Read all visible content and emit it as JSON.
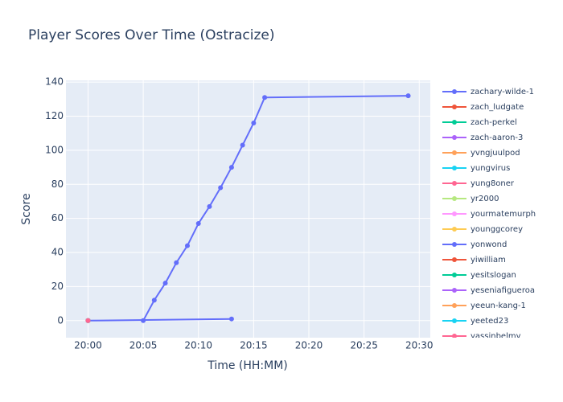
{
  "chart_data": {
    "type": "line",
    "title": "Player Scores Over Time (Ostracize)",
    "x_label": "Time (HH:MM)",
    "y_label": "Score",
    "xlim": [
      "19:58",
      "20:31"
    ],
    "xticks": [
      "20:00",
      "20:05",
      "20:10",
      "20:15",
      "20:20",
      "20:25",
      "20:30"
    ],
    "ylim": [
      -10,
      141
    ],
    "yticks": [
      0,
      20,
      40,
      60,
      80,
      100,
      120,
      140
    ],
    "grid": true,
    "legend": "right",
    "series": [
      {
        "name": "zachary-wilde-1",
        "color": "#636efa",
        "x": [
          "20:05",
          "20:06",
          "20:07",
          "20:08",
          "20:09",
          "20:10",
          "20:11",
          "20:12",
          "20:13",
          "20:14",
          "20:15",
          "20:16",
          "20:29"
        ],
        "values": [
          0,
          12,
          22,
          34,
          44,
          57,
          67,
          78,
          90,
          103,
          116,
          131,
          132
        ]
      },
      {
        "name": "zach_ludgate",
        "color": "#EF553B",
        "x": [
          "20:00"
        ],
        "values": [
          0
        ]
      },
      {
        "name": "zach-perkel",
        "color": "#00cc96",
        "x": [
          "20:00"
        ],
        "values": [
          0
        ]
      },
      {
        "name": "zach-aaron-3",
        "color": "#ab63fa",
        "x": [
          "20:00"
        ],
        "values": [
          0
        ]
      },
      {
        "name": "yvngjuulpod",
        "color": "#FFA15A",
        "x": [
          "20:00"
        ],
        "values": [
          0
        ]
      },
      {
        "name": "yungvirus",
        "color": "#19d3f3",
        "x": [
          "20:00"
        ],
        "values": [
          0
        ]
      },
      {
        "name": "yung8oner",
        "color": "#FF6692",
        "x": [
          "20:00"
        ],
        "values": [
          0
        ]
      },
      {
        "name": "yr2000",
        "color": "#B6E880",
        "x": [
          "20:00"
        ],
        "values": [
          0
        ]
      },
      {
        "name": "yourmatemurph",
        "color": "#FF97FF",
        "x": [
          "20:00"
        ],
        "values": [
          0
        ]
      },
      {
        "name": "younggcorey",
        "color": "#FECB52",
        "x": [
          "20:00"
        ],
        "values": [
          0
        ]
      },
      {
        "name": "yonwond",
        "color": "#636efa",
        "x": [
          "20:00",
          "20:13"
        ],
        "values": [
          0,
          1
        ]
      },
      {
        "name": "yiwilliam",
        "color": "#EF553B",
        "x": [
          "20:00"
        ],
        "values": [
          0
        ]
      },
      {
        "name": "yesitslogan",
        "color": "#00cc96",
        "x": [
          "20:00"
        ],
        "values": [
          0
        ]
      },
      {
        "name": "yeseniafigueroa",
        "color": "#ab63fa",
        "x": [
          "20:00"
        ],
        "values": [
          0
        ]
      },
      {
        "name": "yeeun-kang-1",
        "color": "#FFA15A",
        "x": [
          "20:00"
        ],
        "values": [
          0
        ]
      },
      {
        "name": "yeeted23",
        "color": "#19d3f3",
        "x": [
          "20:00"
        ],
        "values": [
          0
        ]
      },
      {
        "name": "yassinbelmy",
        "color": "#FF6692",
        "x": [
          "20:00"
        ],
        "values": [
          0
        ]
      }
    ]
  }
}
